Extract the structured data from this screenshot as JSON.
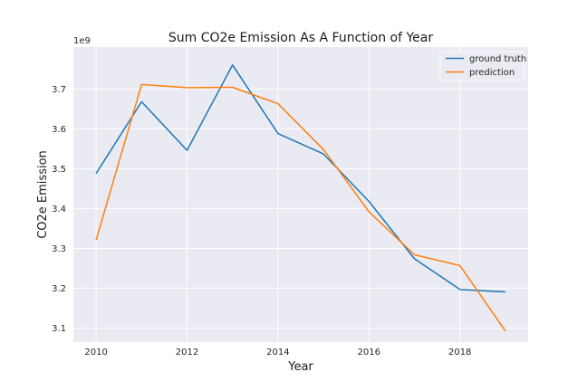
{
  "chart_data": {
    "type": "line",
    "title": "Sum CO2e Emission As A Function of Year",
    "xlabel": "Year",
    "ylabel": "CO2e Emission",
    "y_offset_label": "1e9",
    "xlim": [
      2009.5,
      2019.5
    ],
    "ylim": [
      3.065,
      3.805
    ],
    "x_ticks": [
      2010,
      2012,
      2014,
      2016,
      2018
    ],
    "y_ticks": [
      3.1,
      3.2,
      3.3,
      3.4,
      3.5,
      3.6,
      3.7
    ],
    "y_tick_labels": [
      "3.1",
      "3.2",
      "3.3",
      "3.4",
      "3.5",
      "3.6",
      "3.7"
    ],
    "grid": true,
    "legend_position": "top-right",
    "x": [
      2010,
      2011,
      2012,
      2013,
      2014,
      2015,
      2016,
      2017,
      2018,
      2019
    ],
    "series": [
      {
        "name": "ground truth",
        "color": "#1f77b4",
        "values": [
          3.488,
          3.668,
          3.546,
          3.76,
          3.588,
          3.537,
          3.418,
          3.274,
          3.197,
          3.191
        ]
      },
      {
        "name": "prediction",
        "color": "#ff7f0e",
        "values": [
          3.321,
          3.711,
          3.703,
          3.704,
          3.663,
          3.548,
          3.392,
          3.284,
          3.257,
          3.093
        ]
      }
    ]
  }
}
